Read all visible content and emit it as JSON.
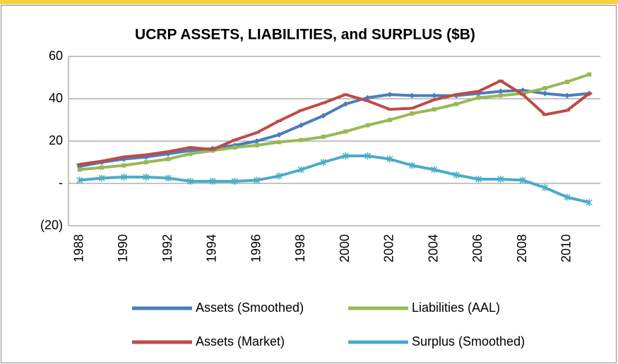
{
  "chart_data": {
    "type": "line",
    "title": "UCRP ASSETS, LIABILITIES, and SURPLUS ($B)",
    "categories": [
      "1988",
      null,
      "1990",
      null,
      "1992",
      null,
      "1994",
      null,
      "1996",
      null,
      "1998",
      null,
      "2000",
      null,
      "2002",
      null,
      "2004",
      null,
      "2006",
      null,
      "2008",
      null,
      "2010",
      null
    ],
    "series": [
      {
        "name": "Assets (Smoothed)",
        "color": "#4a7ebb",
        "marker": "diamond",
        "values": [
          8,
          10,
          11.5,
          12.5,
          14,
          15.5,
          16.5,
          18,
          20,
          23,
          27.5,
          32,
          37.5,
          40.5,
          42,
          41.5,
          41.5,
          41.5,
          42.5,
          43.5,
          44,
          42.5,
          41.5,
          42.5
        ]
      },
      {
        "name": "Liabilities (AAL)",
        "color": "#98b954",
        "marker": "square",
        "values": [
          6.5,
          7.5,
          8.5,
          10,
          11.5,
          14,
          15.5,
          17,
          18,
          19.5,
          20.5,
          22,
          24.5,
          27.5,
          30,
          33,
          35,
          37.5,
          40.5,
          41.5,
          42.5,
          45,
          48,
          51.5
        ]
      },
      {
        "name": "Assets (Market)",
        "color": "#be4b48",
        "marker": "dash",
        "values": [
          9,
          10.5,
          12.5,
          13.5,
          15,
          17,
          16,
          20.5,
          24,
          29.5,
          34.5,
          38,
          42,
          39,
          35,
          35.5,
          39.5,
          42,
          43.5,
          48.5,
          42,
          32.5,
          34.5,
          42.5
        ]
      },
      {
        "name": "Surplus (Smoothed)",
        "color": "#4bacc6",
        "marker": "star",
        "values": [
          1.5,
          2.5,
          3,
          3,
          2.5,
          1,
          1,
          1,
          1.5,
          3.5,
          6.5,
          10,
          13,
          13,
          11.5,
          8.5,
          6.5,
          4,
          2,
          2,
          1.5,
          -2,
          -6.5,
          -9
        ]
      }
    ],
    "ylim": [
      -20,
      60
    ],
    "yticks": [
      {
        "value": -20,
        "label": "(20)"
      },
      {
        "value": 0,
        "label": "-"
      },
      20,
      40,
      60
    ],
    "grid": true,
    "legend": "bottom"
  }
}
